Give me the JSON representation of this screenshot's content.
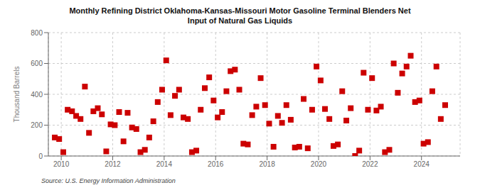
{
  "chart_data": {
    "type": "scatter",
    "title": "Monthly Refining District Oklahoma-Kansas-Missouri Motor Gasoline Terminal Blenders Net\nInput of Natural Gas Liquids",
    "ylabel": "Thousand Barrels",
    "annotations": [
      "Source: U.S. Energy Information Administration"
    ],
    "x": [
      2009.75,
      2009.92,
      2010.08,
      2010.25,
      2010.42,
      2010.58,
      2010.75,
      2010.92,
      2011.08,
      2011.25,
      2011.42,
      2011.58,
      2011.75,
      2011.92,
      2012.08,
      2012.25,
      2012.42,
      2012.58,
      2012.75,
      2012.92,
      2013.08,
      2013.25,
      2013.42,
      2013.58,
      2013.75,
      2013.92,
      2014.08,
      2014.25,
      2014.42,
      2014.58,
      2014.75,
      2014.92,
      2015.08,
      2015.25,
      2015.42,
      2015.58,
      2015.75,
      2015.92,
      2016.08,
      2016.25,
      2016.42,
      2016.58,
      2016.75,
      2016.92,
      2017.08,
      2017.25,
      2017.42,
      2017.58,
      2017.75,
      2017.92,
      2018.08,
      2018.25,
      2018.42,
      2018.58,
      2018.75,
      2018.92,
      2019.08,
      2019.25,
      2019.42,
      2019.58,
      2019.75,
      2019.92,
      2020.08,
      2020.25,
      2020.42,
      2020.58,
      2020.75,
      2020.92,
      2021.08,
      2021.25,
      2021.42,
      2021.58,
      2021.75,
      2021.92,
      2022.08,
      2022.25,
      2022.42,
      2022.58,
      2022.75,
      2022.92,
      2023.08,
      2023.25,
      2023.42,
      2023.58,
      2023.75,
      2023.92,
      2024.08,
      2024.25,
      2024.42,
      2024.58,
      2024.75,
      2024.92
    ],
    "values": [
      120,
      110,
      25,
      300,
      290,
      260,
      240,
      450,
      150,
      290,
      310,
      270,
      30,
      205,
      200,
      285,
      95,
      280,
      185,
      175,
      25,
      40,
      120,
      225,
      350,
      430,
      620,
      265,
      390,
      430,
      250,
      240,
      25,
      35,
      300,
      440,
      510,
      360,
      250,
      285,
      420,
      550,
      560,
      430,
      80,
      75,
      265,
      320,
      505,
      330,
      210,
      60,
      260,
      215,
      330,
      235,
      55,
      60,
      370,
      50,
      300,
      580,
      490,
      305,
      240,
      65,
      75,
      420,
      230,
      310,
      0,
      35,
      540,
      300,
      505,
      295,
      320,
      25,
      40,
      600,
      410,
      535,
      580,
      650,
      350,
      360,
      80,
      90,
      420,
      580,
      240,
      330
    ],
    "color": "#cc0000",
    "marker": "square",
    "xlim": [
      2009.5,
      2025.5
    ],
    "xticks": [
      2010,
      2012,
      2014,
      2016,
      2018,
      2020,
      2022,
      2024
    ],
    "ylim": [
      0,
      800
    ],
    "yticks": [
      0,
      200,
      400,
      600,
      800
    ],
    "grid": true
  }
}
